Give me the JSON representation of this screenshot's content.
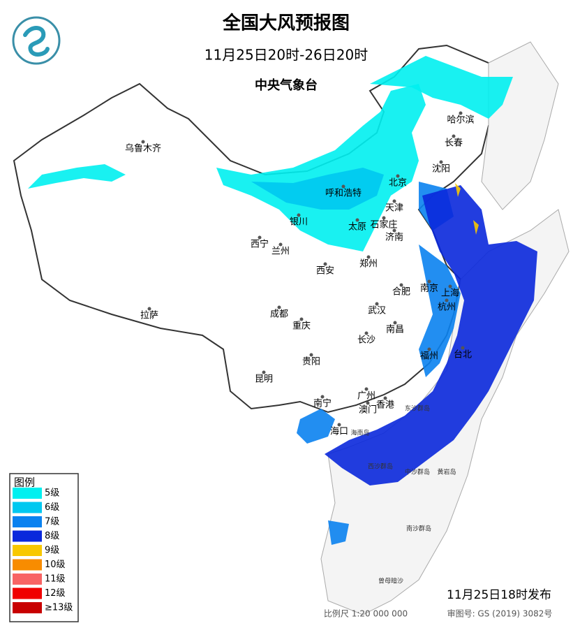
{
  "header": {
    "title": "全国大风预报图",
    "period": "11月25日20时-26日20时",
    "agency": "中央气象台"
  },
  "legend": {
    "title": "图例",
    "items": [
      {
        "label": "5级",
        "color": "#00f0f0"
      },
      {
        "label": "6级",
        "color": "#00c8f0"
      },
      {
        "label": "7级",
        "color": "#0a82f0"
      },
      {
        "label": "8级",
        "color": "#0a28dc"
      },
      {
        "label": "9级",
        "color": "#f8c800"
      },
      {
        "label": "10级",
        "color": "#f88c00"
      },
      {
        "label": "11级",
        "color": "#f86464"
      },
      {
        "label": "12级",
        "color": "#f00000"
      },
      {
        "label": "≥13级",
        "color": "#c80000"
      }
    ]
  },
  "cities": [
    "乌鲁木齐",
    "哈尔滨",
    "长春",
    "沈阳",
    "北京",
    "天津",
    "呼和浩特",
    "银川",
    "太原",
    "石家庄",
    "济南",
    "西宁",
    "兰州",
    "郑州",
    "西安",
    "合肥",
    "南京",
    "上海",
    "杭州",
    "武汉",
    "成都",
    "拉萨",
    "重庆",
    "南昌",
    "长沙",
    "福州",
    "台北",
    "贵阳",
    "昆明",
    "南宁",
    "广州",
    "澳门",
    "香港",
    "海口"
  ],
  "places": [
    "东沙群岛",
    "西沙群岛",
    "中沙群岛",
    "黄岩岛",
    "南沙群岛",
    "曾母暗沙",
    "海南岛"
  ],
  "footer": {
    "issued": "11月25日18时发布",
    "scale": "比例尺 1:20 000 000",
    "review": "审图号: GS (2019) 3082号"
  }
}
